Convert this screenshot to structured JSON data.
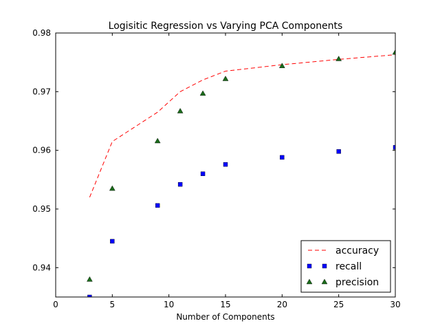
{
  "chart_data": {
    "type": "scatter",
    "title": "Logisitic Regression vs Varying PCA Components",
    "xlabel": "Number of Components",
    "ylabel": "",
    "xlim": [
      0,
      30
    ],
    "ylim": [
      0.935,
      0.98
    ],
    "xticks": [
      0,
      5,
      10,
      15,
      20,
      25,
      30
    ],
    "yticks": [
      0.94,
      0.95,
      0.96,
      0.97,
      0.98
    ],
    "xtick_labels": [
      "0",
      "5",
      "10",
      "15",
      "20",
      "25",
      "30"
    ],
    "ytick_labels": [
      "0.94",
      "0.95",
      "0.96",
      "0.97",
      "0.98"
    ],
    "grid": false,
    "legend_position": "bottom-right",
    "series": [
      {
        "name": "accuracy",
        "style": "dashed-line",
        "color": "#ff0000",
        "x": [
          3,
          5,
          9,
          11,
          13,
          15,
          20,
          25,
          30
        ],
        "values": [
          0.952,
          0.9615,
          0.9665,
          0.97,
          0.972,
          0.9735,
          0.9746,
          0.9755,
          0.9763
        ]
      },
      {
        "name": "recall",
        "style": "square-marker",
        "color": "#0000ff",
        "x": [
          3,
          5,
          9,
          11,
          13,
          15,
          20,
          25,
          30
        ],
        "values": [
          0.935,
          0.9445,
          0.9506,
          0.9542,
          0.956,
          0.9576,
          0.9588,
          0.9598,
          0.9605
        ]
      },
      {
        "name": "precision",
        "style": "triangle-marker",
        "color": "#1a6b1a",
        "x": [
          3,
          5,
          9,
          11,
          13,
          15,
          20,
          25,
          30
        ],
        "values": [
          0.938,
          0.9535,
          0.9616,
          0.9667,
          0.9697,
          0.9722,
          0.9744,
          0.9756,
          0.9767
        ]
      }
    ]
  }
}
